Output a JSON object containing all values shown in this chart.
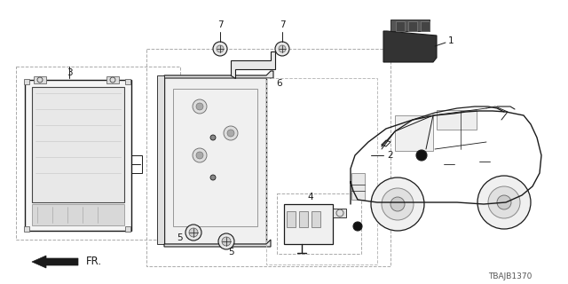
{
  "bg_color": "#ffffff",
  "diagram_code": "TBAJB1370",
  "dark": "#1a1a1a",
  "mid": "#555555",
  "light": "#999999",
  "label_fs": 7.5,
  "code_fs": 6.5
}
